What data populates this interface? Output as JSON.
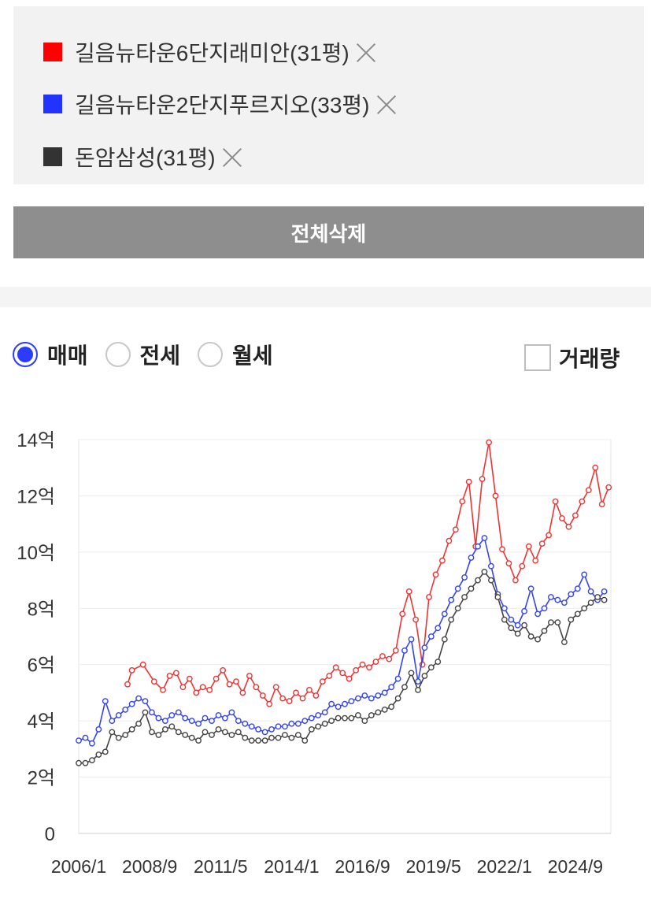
{
  "compare": {
    "items": [
      {
        "label": "길음뉴타운6단지래미안(31평)",
        "color": "#ff0000"
      },
      {
        "label": "길음뉴타운2단지푸르지오(33평)",
        "color": "#2233ff"
      },
      {
        "label": "돈암삼성(31평)",
        "color": "#333333"
      }
    ]
  },
  "clear_all_label": "전체삭제",
  "tabs": {
    "options": [
      {
        "label": "매매",
        "selected": true
      },
      {
        "label": "전세",
        "selected": false
      },
      {
        "label": "월세",
        "selected": false
      }
    ]
  },
  "volume_label": "거래량",
  "chart_data": {
    "type": "line",
    "title": "",
    "xlabel": "",
    "ylabel": "",
    "ylim": [
      0,
      14
    ],
    "y_ticks": [
      {
        "value": 0,
        "label": "0"
      },
      {
        "value": 2,
        "label": "2억"
      },
      {
        "value": 4,
        "label": "4억"
      },
      {
        "value": 6,
        "label": "6억"
      },
      {
        "value": 8,
        "label": "8억"
      },
      {
        "value": 10,
        "label": "10억"
      },
      {
        "value": 12,
        "label": "12억"
      },
      {
        "value": 14,
        "label": "14억"
      }
    ],
    "x_ticks": [
      "2006/1",
      "2008/9",
      "2011/5",
      "2014/1",
      "2016/9",
      "2019/5",
      "2022/1",
      "2024/9"
    ],
    "xlim": [
      "2006/1",
      "2026/1"
    ],
    "grid": true,
    "series": [
      {
        "name": "길음뉴타운6단지래미안(31평)",
        "color": "#ee3333",
        "x": [
          "2007/11",
          "2008/1",
          "2008/6",
          "2008/11",
          "2009/3",
          "2009/6",
          "2009/9",
          "2009/12",
          "2010/3",
          "2010/6",
          "2010/9",
          "2010/12",
          "2011/3",
          "2011/6",
          "2011/9",
          "2011/12",
          "2012/3",
          "2012/6",
          "2012/9",
          "2012/12",
          "2013/3",
          "2013/6",
          "2013/9",
          "2013/12",
          "2014/3",
          "2014/6",
          "2014/9",
          "2014/12",
          "2015/3",
          "2015/6",
          "2015/9",
          "2015/12",
          "2016/3",
          "2016/6",
          "2016/9",
          "2016/12",
          "2017/3",
          "2017/6",
          "2017/9",
          "2017/12",
          "2018/3",
          "2018/6",
          "2018/9",
          "2018/12",
          "2019/3",
          "2019/6",
          "2019/9",
          "2019/12",
          "2020/3",
          "2020/6",
          "2020/9",
          "2020/12",
          "2021/3",
          "2021/6",
          "2021/9",
          "2021/12",
          "2022/3",
          "2022/6",
          "2022/9",
          "2022/12",
          "2023/3",
          "2023/6",
          "2023/9",
          "2023/12",
          "2024/3",
          "2024/6",
          "2024/9",
          "2024/12",
          "2025/3",
          "2025/6",
          "2025/9",
          "2025/12"
        ],
        "values": [
          5.3,
          5.8,
          6.0,
          5.4,
          5.1,
          5.6,
          5.7,
          5.2,
          5.5,
          5.0,
          5.2,
          5.1,
          5.5,
          5.8,
          5.3,
          5.4,
          5.0,
          5.6,
          5.2,
          4.9,
          4.6,
          5.2,
          4.8,
          4.7,
          5.0,
          4.8,
          5.1,
          4.9,
          5.4,
          5.6,
          5.9,
          5.7,
          5.5,
          5.8,
          6.0,
          5.9,
          6.1,
          6.3,
          6.2,
          6.5,
          7.8,
          8.6,
          7.6,
          6.0,
          8.4,
          9.2,
          9.7,
          10.4,
          10.8,
          11.8,
          12.5,
          10.2,
          12.6,
          13.9,
          12.0,
          10.1,
          9.6,
          9.0,
          9.5,
          10.2,
          9.7,
          10.3,
          10.6,
          11.8,
          11.2,
          10.9,
          11.3,
          11.8,
          12.2,
          13.0,
          11.7,
          12.3
        ]
      },
      {
        "name": "길음뉴타운2단지푸르지오(33평)",
        "color": "#3344ee",
        "x": [
          "2006/1",
          "2006/4",
          "2006/7",
          "2006/10",
          "2007/1",
          "2007/4",
          "2007/7",
          "2007/10",
          "2008/1",
          "2008/4",
          "2008/7",
          "2008/10",
          "2009/1",
          "2009/4",
          "2009/7",
          "2009/10",
          "2010/1",
          "2010/4",
          "2010/7",
          "2010/10",
          "2011/1",
          "2011/4",
          "2011/7",
          "2011/10",
          "2012/1",
          "2012/4",
          "2012/7",
          "2012/10",
          "2013/1",
          "2013/4",
          "2013/7",
          "2013/10",
          "2014/1",
          "2014/4",
          "2014/7",
          "2014/10",
          "2015/1",
          "2015/4",
          "2015/7",
          "2015/10",
          "2016/1",
          "2016/4",
          "2016/7",
          "2016/10",
          "2017/1",
          "2017/4",
          "2017/7",
          "2017/10",
          "2018/1",
          "2018/4",
          "2018/7",
          "2018/10",
          "2019/1",
          "2019/4",
          "2019/7",
          "2019/10",
          "2020/1",
          "2020/4",
          "2020/7",
          "2020/10",
          "2021/1",
          "2021/4",
          "2021/7",
          "2021/10",
          "2022/1",
          "2022/4",
          "2022/7",
          "2022/10",
          "2023/1",
          "2023/4",
          "2023/7",
          "2023/10",
          "2024/1",
          "2024/4",
          "2024/7",
          "2024/10",
          "2025/1",
          "2025/4",
          "2025/7",
          "2025/10"
        ],
        "values": [
          3.3,
          3.4,
          3.2,
          3.7,
          4.7,
          4.0,
          4.2,
          4.4,
          4.6,
          4.8,
          4.7,
          4.3,
          4.1,
          4.0,
          4.2,
          4.3,
          4.1,
          4.0,
          3.9,
          4.1,
          4.0,
          4.2,
          4.1,
          4.3,
          4.0,
          3.9,
          3.8,
          3.7,
          3.6,
          3.7,
          3.8,
          3.8,
          3.9,
          3.9,
          4.0,
          4.1,
          4.2,
          4.3,
          4.6,
          4.5,
          4.6,
          4.7,
          4.8,
          4.9,
          4.8,
          4.9,
          5.0,
          5.2,
          5.5,
          6.5,
          6.9,
          5.4,
          6.6,
          7.0,
          7.3,
          7.8,
          8.3,
          8.7,
          9.1,
          9.8,
          10.2,
          10.5,
          9.5,
          8.5,
          8.0,
          7.6,
          7.4,
          7.9,
          8.7,
          7.8,
          8.0,
          8.4,
          8.3,
          8.2,
          8.5,
          8.7,
          9.2,
          8.6,
          8.3,
          8.6
        ]
      },
      {
        "name": "돈암삼성(31평)",
        "color": "#444444",
        "x": [
          "2006/1",
          "2006/4",
          "2006/7",
          "2006/10",
          "2007/1",
          "2007/4",
          "2007/7",
          "2007/10",
          "2008/1",
          "2008/4",
          "2008/7",
          "2008/10",
          "2009/1",
          "2009/4",
          "2009/7",
          "2009/10",
          "2010/1",
          "2010/4",
          "2010/7",
          "2010/10",
          "2011/1",
          "2011/4",
          "2011/7",
          "2011/10",
          "2012/1",
          "2012/4",
          "2012/7",
          "2012/10",
          "2013/1",
          "2013/4",
          "2013/7",
          "2013/10",
          "2014/1",
          "2014/4",
          "2014/7",
          "2014/10",
          "2015/1",
          "2015/4",
          "2015/7",
          "2015/10",
          "2016/1",
          "2016/4",
          "2016/7",
          "2016/10",
          "2017/1",
          "2017/4",
          "2017/7",
          "2017/10",
          "2018/1",
          "2018/4",
          "2018/7",
          "2018/10",
          "2019/1",
          "2019/4",
          "2019/7",
          "2019/10",
          "2020/1",
          "2020/4",
          "2020/7",
          "2020/10",
          "2021/1",
          "2021/4",
          "2021/7",
          "2021/10",
          "2022/1",
          "2022/4",
          "2022/7",
          "2022/10",
          "2023/1",
          "2023/4",
          "2023/7",
          "2023/10",
          "2024/1",
          "2024/4",
          "2024/7",
          "2024/10",
          "2025/1",
          "2025/4",
          "2025/7",
          "2025/10"
        ],
        "values": [
          2.5,
          2.5,
          2.6,
          2.8,
          2.9,
          3.6,
          3.4,
          3.5,
          3.7,
          3.9,
          4.3,
          3.6,
          3.5,
          3.7,
          3.8,
          3.6,
          3.5,
          3.4,
          3.3,
          3.6,
          3.5,
          3.7,
          3.6,
          3.5,
          3.6,
          3.4,
          3.3,
          3.3,
          3.3,
          3.4,
          3.4,
          3.5,
          3.4,
          3.5,
          3.3,
          3.7,
          3.8,
          3.9,
          4.0,
          4.1,
          4.1,
          4.1,
          4.2,
          4.0,
          4.2,
          4.3,
          4.4,
          4.5,
          4.8,
          5.2,
          5.7,
          5.1,
          5.6,
          5.9,
          6.1,
          6.9,
          7.6,
          8.0,
          8.4,
          8.7,
          9.0,
          9.3,
          9.0,
          8.4,
          7.6,
          7.3,
          7.1,
          7.4,
          7.0,
          6.9,
          7.2,
          7.5,
          7.5,
          6.8,
          7.6,
          7.8,
          8.0,
          8.2,
          8.4,
          8.3
        ]
      }
    ]
  }
}
